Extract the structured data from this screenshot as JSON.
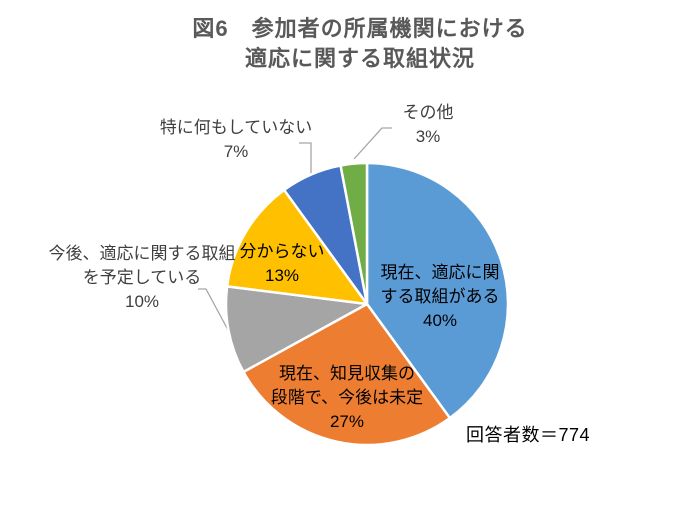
{
  "title": {
    "line1": "図6　参加者の所属機関における",
    "line2": "適応に関する取組状況"
  },
  "chart_data": {
    "type": "pie",
    "title": "図6 参加者の所属機関における適応に関する取組状況",
    "note": "回答者数＝774",
    "total_respondents": 774,
    "unit": "%",
    "start_angle_deg": 0,
    "direction": "clockwise",
    "legend_position": "none",
    "slice_border_color": "#FFFFFF",
    "leader_line_color": "#A6A6A6",
    "segments": [
      {
        "label": "現在、適応に関する取組がある",
        "value": 40,
        "pct_label": "40%",
        "color": "#5B9BD5",
        "label_lines": [
          "現在、適応に関",
          "する取組がある"
        ],
        "label_placement": "inside"
      },
      {
        "label": "現在、知見収集の段階で、今後は未定",
        "value": 27,
        "pct_label": "27%",
        "color": "#ED7D31",
        "label_lines": [
          "現在、知見収集の",
          "段階で、今後は未定"
        ],
        "label_placement": "inside"
      },
      {
        "label": "今後、適応に関する取組を予定している",
        "value": 10,
        "pct_label": "10%",
        "color": "#A5A5A5",
        "label_lines": [
          "今後、適応に関する取組",
          "を予定している"
        ],
        "label_placement": "outside"
      },
      {
        "label": "分からない",
        "value": 13,
        "pct_label": "13%",
        "color": "#FFC000",
        "label_lines": [
          "分からない"
        ],
        "label_placement": "inside"
      },
      {
        "label": "特に何もしていない",
        "value": 7,
        "pct_label": "7%",
        "color": "#4472C4",
        "label_lines": [
          "特に何もしていない"
        ],
        "label_placement": "outside"
      },
      {
        "label": "その他",
        "value": 3,
        "pct_label": "3%",
        "color": "#70AD47",
        "label_lines": [
          "その他"
        ],
        "label_placement": "outside"
      }
    ]
  }
}
